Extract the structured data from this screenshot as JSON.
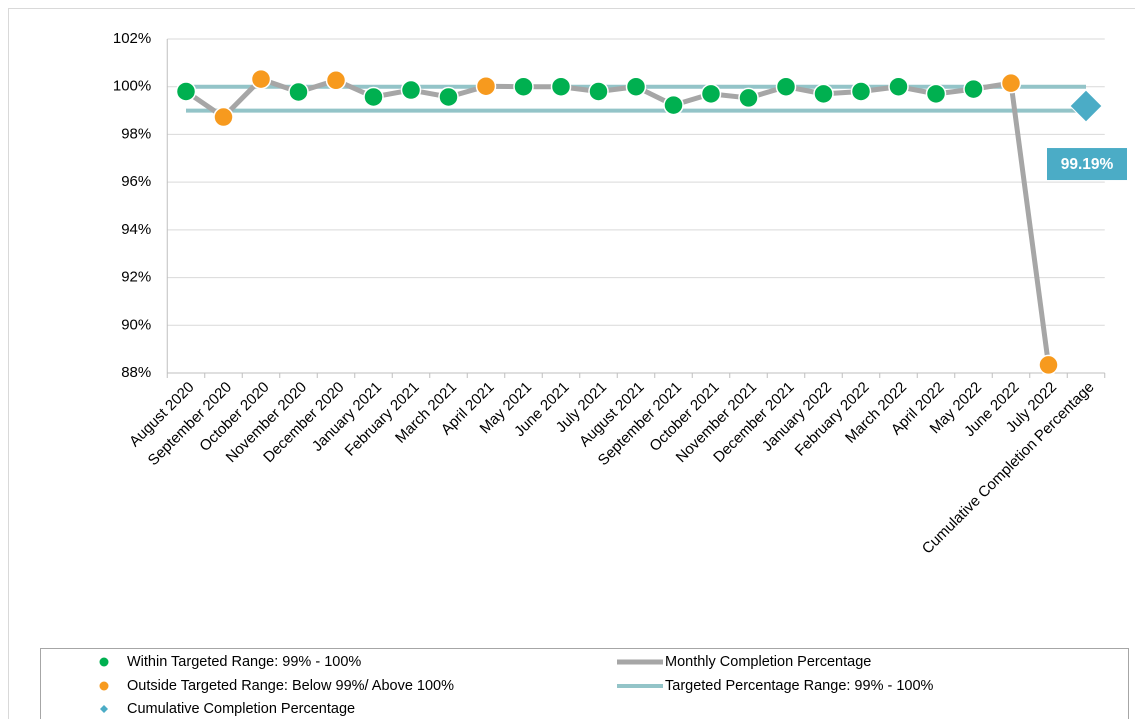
{
  "chart_data": {
    "type": "line",
    "categories": [
      "August 2020",
      "September 2020",
      "October 2020",
      "November 2020",
      "December 2020",
      "January 2021",
      "February 2021",
      "March 2021",
      "April 2021",
      "May 2021",
      "June 2021",
      "July 2021",
      "August 2021",
      "September 2021",
      "October 2021",
      "November 2021",
      "December 2021",
      "January 2022",
      "February 2022",
      "March 2022",
      "April 2022",
      "May 2022",
      "June 2022",
      "July 2022",
      "Cumulative Completion Percentage"
    ],
    "ylim": [
      88,
      102
    ],
    "yticks": [
      {
        "value": 88,
        "label": "88%"
      },
      {
        "value": 90,
        "label": "90%"
      },
      {
        "value": 92,
        "label": "92%"
      },
      {
        "value": 94,
        "label": "94%"
      },
      {
        "value": 96,
        "label": "96%"
      },
      {
        "value": 98,
        "label": "98%"
      },
      {
        "value": 100,
        "label": "100%"
      },
      {
        "value": 102,
        "label": "102%"
      }
    ],
    "grid": true,
    "series": [
      {
        "name": "Within Targeted Range: 99% - 100%",
        "color": "#00b050",
        "marker": "circle",
        "values": [
          99.8,
          null,
          null,
          99.78,
          null,
          99.57,
          99.86,
          99.57,
          null,
          100.0,
          100.0,
          99.8,
          100.0,
          99.23,
          99.7,
          99.53,
          100.0,
          99.7,
          99.8,
          100.0,
          99.7,
          99.9,
          null,
          null,
          null
        ]
      },
      {
        "name": "Outside Targeted Range: Below 99%/ Above 100%",
        "color": "#f79a1e",
        "marker": "circle",
        "values": [
          null,
          98.73,
          100.32,
          null,
          100.27,
          null,
          null,
          null,
          100.02,
          null,
          null,
          null,
          null,
          null,
          null,
          null,
          null,
          null,
          null,
          null,
          null,
          null,
          100.15,
          88.34,
          null
        ]
      },
      {
        "name": "Cumulative Completion Percentage",
        "color": "#4bacc6",
        "marker": "diamond",
        "values": [
          null,
          null,
          null,
          null,
          null,
          null,
          null,
          null,
          null,
          null,
          null,
          null,
          null,
          null,
          null,
          null,
          null,
          null,
          null,
          null,
          null,
          null,
          null,
          null,
          99.19
        ],
        "value_labels": [
          null,
          null,
          null,
          null,
          null,
          null,
          null,
          null,
          null,
          null,
          null,
          null,
          null,
          null,
          null,
          null,
          null,
          null,
          null,
          null,
          null,
          null,
          null,
          null,
          "99.19%"
        ]
      }
    ],
    "line": {
      "name": "Monthly Completion Percentage",
      "color": "#a6a6a6"
    },
    "target": {
      "name": "Targeted Percentage Range: 99% - 100%",
      "color": "#93c4c8",
      "values": [
        99,
        100
      ]
    }
  }
}
